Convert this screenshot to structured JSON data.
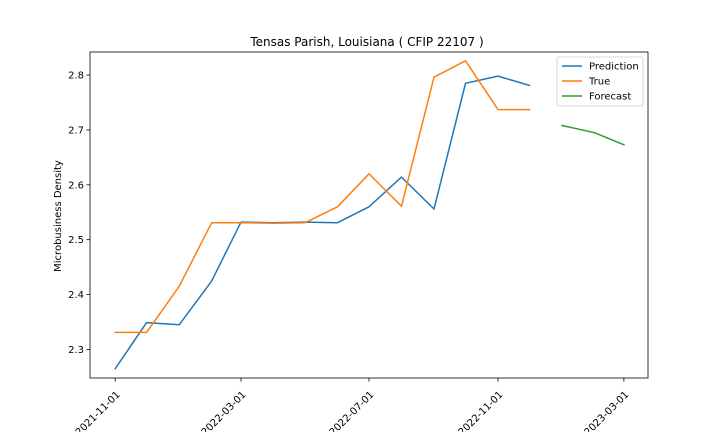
{
  "chart_data": {
    "type": "line",
    "title": "Tensas Parish, Louisiana ( CFIP 22107 )",
    "xlabel": "",
    "ylabel": "Microbusiness Density",
    "x_tick_labels": [
      "2021-11-01",
      "2022-03-01",
      "2022-07-01",
      "2022-11-01",
      "2023-03-01"
    ],
    "y_ticks": [
      2.3,
      2.4,
      2.5,
      2.6,
      2.7,
      2.8
    ],
    "ylim": [
      2.248,
      2.842
    ],
    "xlim": [
      "2021-10-08",
      "2023-03-24"
    ],
    "grid": false,
    "legend_position": "top-right",
    "series": [
      {
        "name": "Prediction",
        "color": "#1f77b4",
        "x": [
          "2021-11-01",
          "2021-12-01",
          "2022-01-01",
          "2022-02-01",
          "2022-03-01",
          "2022-04-01",
          "2022-05-01",
          "2022-06-01",
          "2022-07-01",
          "2022-08-01",
          "2022-09-01",
          "2022-10-01",
          "2022-11-01",
          "2022-12-01"
        ],
        "values": [
          2.265,
          2.349,
          2.345,
          2.425,
          2.532,
          2.531,
          2.532,
          2.531,
          2.56,
          2.614,
          2.556,
          2.785,
          2.798,
          2.781
        ]
      },
      {
        "name": "True",
        "color": "#ff7f0e",
        "x": [
          "2021-11-01",
          "2021-12-01",
          "2022-01-01",
          "2022-02-01",
          "2022-03-01",
          "2022-04-01",
          "2022-05-01",
          "2022-06-01",
          "2022-07-01",
          "2022-08-01",
          "2022-09-01",
          "2022-10-01",
          "2022-11-01",
          "2022-12-01"
        ],
        "values": [
          2.331,
          2.331,
          2.415,
          2.531,
          2.531,
          2.53,
          2.531,
          2.56,
          2.62,
          2.561,
          2.796,
          2.826,
          2.737,
          2.737
        ]
      },
      {
        "name": "Forecast",
        "color": "#2ca02c",
        "x": [
          "2023-01-01",
          "2023-02-01",
          "2023-03-01"
        ],
        "values": [
          2.708,
          2.695,
          2.673
        ]
      }
    ]
  }
}
